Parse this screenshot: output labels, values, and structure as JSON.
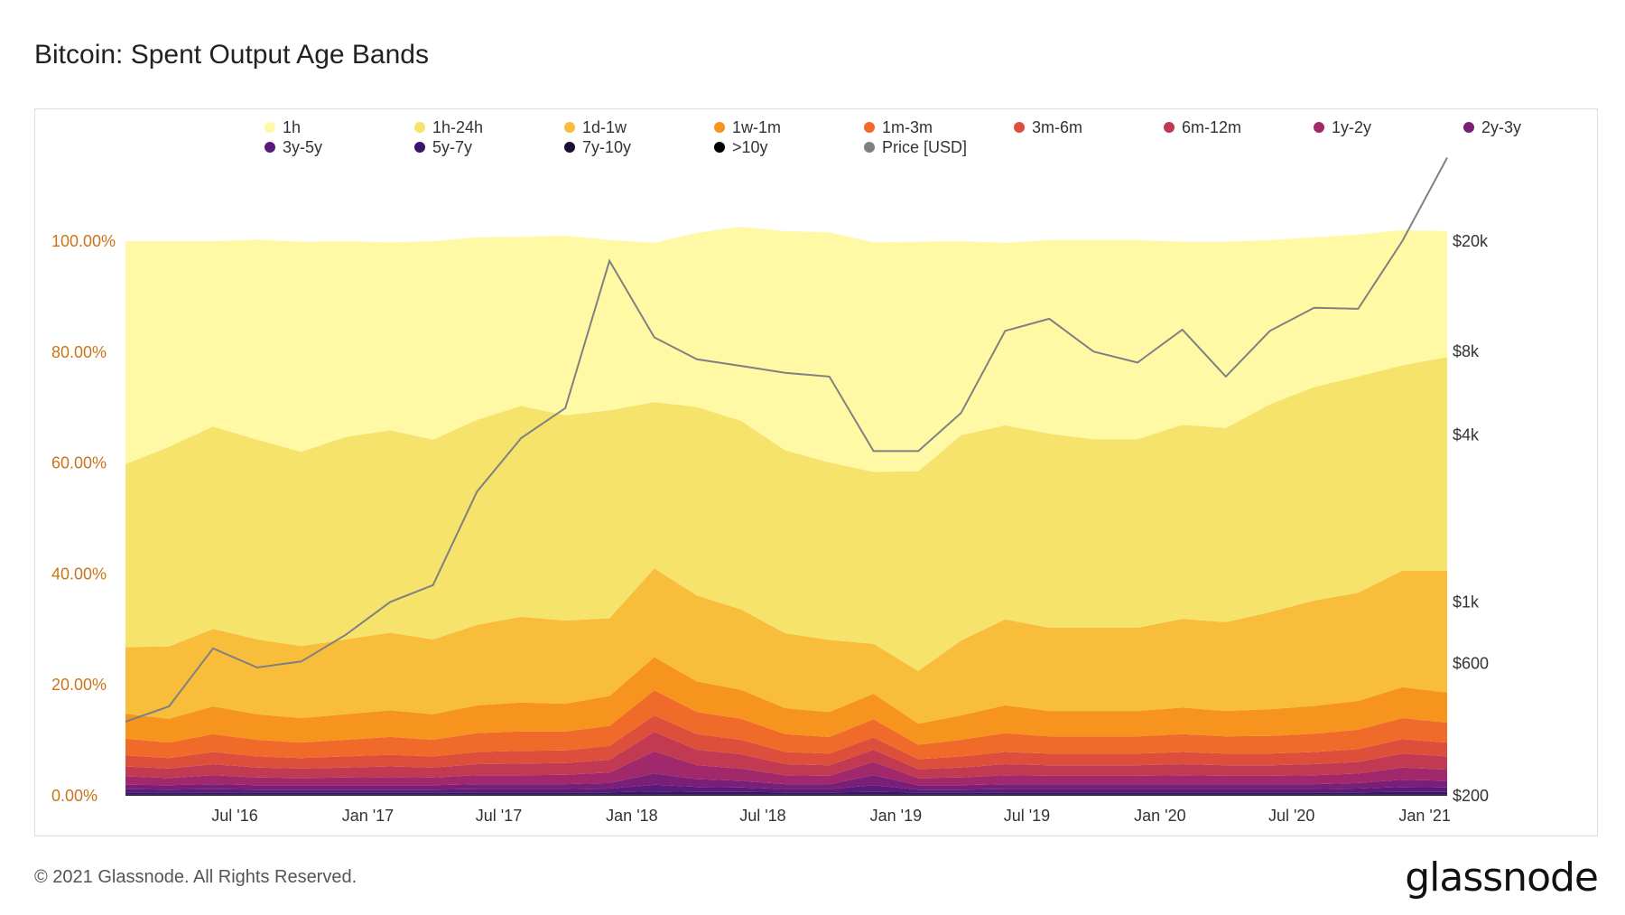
{
  "title": "Bitcoin: Spent Output Age Bands",
  "footer": {
    "copyright": "© 2021 Glassnode. All Rights Reserved.",
    "brand": "glassnode"
  },
  "watermark": "glassnode",
  "chart_data": {
    "type": "area",
    "stacked": true,
    "title": "Bitcoin: Spent Output Age Bands",
    "x_ticks": [
      "Jul '16",
      "Jan '17",
      "Jul '17",
      "Jan '18",
      "Jul '18",
      "Jan '19",
      "Jul '19",
      "Jan '20",
      "Jul '20",
      "Jan '21"
    ],
    "x_range": [
      "2016-02-01",
      "2021-02-01"
    ],
    "y_left": {
      "ticks": [
        "0.00%",
        "20.00%",
        "40.00%",
        "60.00%",
        "80.00%",
        "100.00%"
      ],
      "range": [
        0,
        100
      ]
    },
    "y_right": {
      "scale": "log",
      "ticks": [
        "$200",
        "$600",
        "$1k",
        "$4k",
        "$8k",
        "$20k"
      ],
      "tick_values": [
        200,
        600,
        1000,
        4000,
        8000,
        20000
      ],
      "range": [
        200,
        20000
      ]
    },
    "legend_position": "top",
    "legend": [
      {
        "name": "1h",
        "color": "#fff9a6"
      },
      {
        "name": "1h-24h",
        "color": "#f6e36b"
      },
      {
        "name": "1d-1w",
        "color": "#f9bd3c"
      },
      {
        "name": "1w-1m",
        "color": "#f7941d"
      },
      {
        "name": "1m-3m",
        "color": "#f06a2a"
      },
      {
        "name": "3m-6m",
        "color": "#dd4f3b"
      },
      {
        "name": "6m-12m",
        "color": "#c23a52"
      },
      {
        "name": "1y-2y",
        "color": "#a0286b"
      },
      {
        "name": "2y-3y",
        "color": "#7a1f78"
      },
      {
        "name": "3y-5y",
        "color": "#5a1a7a"
      },
      {
        "name": "5y-7y",
        "color": "#3b136a"
      },
      {
        "name": "7y-10y",
        "color": "#1b0f36"
      },
      {
        "name": ">10y",
        "color": "#000000"
      },
      {
        "name": "Price [USD]",
        "color": "#808080"
      }
    ],
    "x": [
      "2016-02",
      "2016-04",
      "2016-06",
      "2016-08",
      "2016-10",
      "2016-12",
      "2017-02",
      "2017-04",
      "2017-06",
      "2017-08",
      "2017-10",
      "2017-12",
      "2018-02",
      "2018-04",
      "2018-06",
      "2018-08",
      "2018-10",
      "2018-12",
      "2019-02",
      "2019-04",
      "2019-06",
      "2019-08",
      "2019-10",
      "2019-12",
      "2020-02",
      "2020-04",
      "2020-06",
      "2020-08",
      "2020-10",
      "2020-12",
      "2021-02"
    ],
    "series": [
      {
        "name": ">10y",
        "values": [
          0.1,
          0.1,
          0.1,
          0.1,
          0.1,
          0.1,
          0.1,
          0.1,
          0.1,
          0.1,
          0.1,
          0.1,
          0.1,
          0.1,
          0.1,
          0.1,
          0.1,
          0.1,
          0.1,
          0.1,
          0.1,
          0.1,
          0.1,
          0.1,
          0.1,
          0.1,
          0.1,
          0.1,
          0.1,
          0.1,
          0.1
        ]
      },
      {
        "name": "7y-10y",
        "values": [
          0.2,
          0.2,
          0.2,
          0.2,
          0.2,
          0.2,
          0.2,
          0.2,
          0.2,
          0.2,
          0.2,
          0.2,
          0.2,
          0.2,
          0.2,
          0.2,
          0.2,
          0.2,
          0.2,
          0.2,
          0.2,
          0.2,
          0.2,
          0.2,
          0.2,
          0.2,
          0.2,
          0.2,
          0.2,
          0.2,
          0.2
        ]
      },
      {
        "name": "5y-7y",
        "values": [
          0.3,
          0.3,
          0.3,
          0.3,
          0.3,
          0.3,
          0.3,
          0.3,
          0.3,
          0.3,
          0.3,
          0.3,
          0.5,
          0.4,
          0.4,
          0.3,
          0.3,
          0.4,
          0.3,
          0.3,
          0.3,
          0.3,
          0.3,
          0.3,
          0.3,
          0.3,
          0.3,
          0.3,
          0.3,
          0.4,
          0.4
        ]
      },
      {
        "name": "3y-5y",
        "values": [
          0.6,
          0.5,
          0.6,
          0.5,
          0.5,
          0.5,
          0.5,
          0.5,
          0.6,
          0.6,
          0.6,
          0.7,
          1.2,
          0.9,
          0.8,
          0.6,
          0.6,
          1.2,
          0.5,
          0.5,
          0.6,
          0.6,
          0.6,
          0.6,
          0.6,
          0.6,
          0.6,
          0.6,
          0.7,
          0.9,
          0.8
        ]
      },
      {
        "name": "2y-3y",
        "values": [
          0.8,
          0.8,
          0.9,
          0.8,
          0.8,
          0.8,
          0.8,
          0.8,
          0.9,
          0.9,
          0.9,
          1.0,
          2.0,
          1.4,
          1.2,
          0.9,
          0.9,
          1.8,
          0.8,
          0.8,
          0.9,
          0.9,
          0.9,
          0.9,
          0.9,
          0.9,
          0.9,
          0.9,
          1.0,
          1.3,
          1.2
        ]
      },
      {
        "name": "1y-2y",
        "values": [
          1.5,
          1.3,
          1.6,
          1.4,
          1.3,
          1.4,
          1.5,
          1.4,
          1.6,
          1.6,
          1.7,
          1.9,
          4.0,
          2.5,
          2.2,
          1.6,
          1.5,
          2.4,
          1.3,
          1.4,
          1.6,
          1.5,
          1.5,
          1.5,
          1.6,
          1.5,
          1.5,
          1.6,
          1.7,
          2.2,
          2.0
        ]
      },
      {
        "name": "6m-12m",
        "values": [
          1.8,
          1.7,
          2.0,
          1.8,
          1.7,
          1.8,
          1.9,
          1.8,
          2.0,
          2.1,
          2.1,
          2.3,
          3.5,
          2.8,
          2.6,
          2.0,
          1.9,
          2.2,
          1.6,
          1.8,
          2.0,
          1.9,
          1.9,
          1.9,
          2.0,
          1.9,
          1.9,
          2.0,
          2.1,
          2.5,
          2.4
        ]
      },
      {
        "name": "3m-6m",
        "values": [
          2.0,
          1.9,
          2.2,
          2.0,
          1.9,
          2.0,
          2.1,
          2.0,
          2.2,
          2.3,
          2.3,
          2.5,
          3.0,
          2.8,
          2.6,
          2.2,
          2.1,
          2.2,
          1.8,
          2.0,
          2.2,
          2.1,
          2.1,
          2.1,
          2.2,
          2.1,
          2.1,
          2.2,
          2.3,
          2.6,
          2.5
        ]
      },
      {
        "name": "1m-3m",
        "values": [
          3.0,
          2.8,
          3.2,
          3.0,
          2.8,
          3.0,
          3.2,
          3.0,
          3.4,
          3.5,
          3.4,
          3.6,
          4.5,
          4.0,
          3.8,
          3.2,
          3.0,
          3.3,
          2.6,
          3.0,
          3.4,
          3.1,
          3.1,
          3.1,
          3.2,
          3.1,
          3.2,
          3.3,
          3.5,
          3.8,
          3.6
        ]
      },
      {
        "name": "1w-1m",
        "values": [
          4.5,
          4.3,
          5.0,
          4.6,
          4.4,
          4.6,
          4.8,
          4.6,
          5.0,
          5.2,
          5.0,
          5.4,
          6.0,
          5.5,
          5.2,
          4.7,
          4.5,
          4.6,
          3.8,
          4.4,
          5.0,
          4.6,
          4.6,
          4.6,
          4.8,
          4.6,
          4.8,
          5.0,
          5.2,
          5.6,
          5.4
        ]
      },
      {
        "name": "1d-1w",
        "values": [
          12.0,
          13.0,
          14.0,
          13.5,
          13.0,
          13.5,
          14.0,
          13.5,
          14.5,
          15.5,
          15.0,
          14.0,
          16.0,
          15.5,
          14.5,
          13.5,
          13.0,
          9.0,
          9.5,
          13.5,
          15.5,
          15.0,
          15.0,
          15.0,
          16.0,
          16.0,
          17.5,
          19.0,
          19.5,
          21.0,
          22.0
        ]
      },
      {
        "name": "1h-24h",
        "values": [
          33.0,
          36.0,
          36.5,
          36.0,
          35.0,
          36.5,
          36.5,
          36.0,
          37.0,
          38.0,
          37.0,
          37.5,
          30.0,
          34.0,
          34.0,
          33.0,
          32.0,
          31.0,
          36.0,
          37.0,
          35.0,
          35.0,
          34.0,
          34.0,
          35.0,
          35.0,
          37.5,
          38.5,
          39.0,
          37.0,
          38.5
        ]
      },
      {
        "name": "1h",
        "values": [
          40.2,
          37.1,
          33.4,
          36.1,
          37.9,
          35.3,
          33.9,
          35.8,
          32.9,
          30.5,
          32.4,
          30.7,
          28.7,
          31.4,
          35.0,
          39.5,
          41.5,
          41.4,
          41.4,
          35.0,
          32.9,
          34.9,
          35.9,
          35.9,
          33.0,
          33.6,
          29.6,
          27.0,
          25.6,
          24.4,
          22.7
        ]
      }
    ],
    "price": {
      "name": "Price [USD]",
      "x": [
        "2016-02",
        "2016-04",
        "2016-06",
        "2016-08",
        "2016-10",
        "2016-12",
        "2017-02",
        "2017-04",
        "2017-06",
        "2017-08",
        "2017-10",
        "2017-12",
        "2018-02",
        "2018-04",
        "2018-06",
        "2018-08",
        "2018-10",
        "2018-12",
        "2019-02",
        "2019-04",
        "2019-06",
        "2019-08",
        "2019-10",
        "2019-12",
        "2020-02",
        "2020-04",
        "2020-06",
        "2020-08",
        "2020-10",
        "2020-12",
        "2021-02"
      ],
      "values": [
        370,
        420,
        680,
        580,
        610,
        760,
        1000,
        1150,
        2500,
        3900,
        5000,
        17000,
        9000,
        7500,
        7100,
        6700,
        6500,
        3500,
        3500,
        4800,
        9500,
        10500,
        8000,
        7300,
        9600,
        6500,
        9500,
        11500,
        11400,
        20000,
        40000
      ]
    }
  }
}
